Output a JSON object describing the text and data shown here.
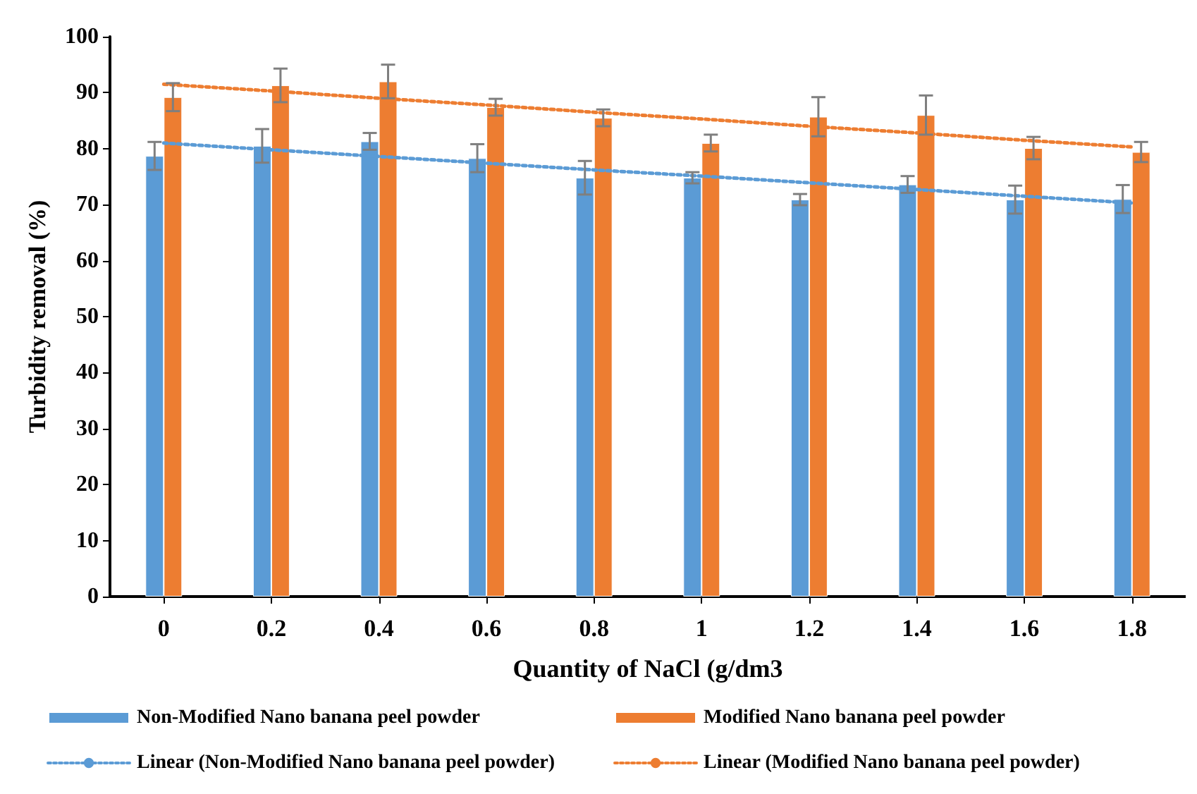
{
  "chart_data": {
    "type": "bar",
    "xlabel": "Quantity of NaCl (g/dm3",
    "ylabel": "Turbidity removal (%)",
    "categories": [
      "0",
      "0.2",
      "0.4",
      "0.6",
      "0.8",
      "1",
      "1.2",
      "1.4",
      "1.6",
      "1.8"
    ],
    "series": [
      {
        "name": "Non-Modified Nano banana peel powder",
        "color": "#5b9bd5",
        "values": [
          78.7,
          80.5,
          81.3,
          78.3,
          74.8,
          74.8,
          70.9,
          73.6,
          70.9,
          71.0
        ],
        "errors": [
          2.5,
          3,
          1.5,
          2.5,
          3,
          1,
          1,
          1.5,
          2.5,
          2.5
        ]
      },
      {
        "name": "Modified Nano banana peel powder",
        "color": "#ed7d31",
        "values": [
          89.2,
          91.3,
          92.0,
          87.4,
          85.5,
          81.0,
          85.7,
          86.0,
          80.1,
          79.4
        ],
        "errors": [
          2.5,
          3,
          3,
          1.5,
          1.5,
          1.5,
          3.5,
          3.5,
          2,
          1.8
        ]
      },
      {
        "name": "Linear (Non-Modified Nano banana peel powder)",
        "type": "line",
        "line_style": "dotted",
        "marker": "none",
        "color": "#5b9bd5",
        "values": [
          81.0,
          79.8,
          78.6,
          77.4,
          76.2,
          75.1,
          73.9,
          72.7,
          71.5,
          70.3
        ]
      },
      {
        "name": "Linear (Modified Nano banana peel powder)",
        "type": "line",
        "line_style": "dotted",
        "marker": "none",
        "color": "#ed7d31",
        "values": [
          91.5,
          90.3,
          89.0,
          87.8,
          86.5,
          85.3,
          84.0,
          82.8,
          81.5,
          80.3
        ]
      }
    ],
    "ylim": [
      0,
      100
    ],
    "yticks": [
      0,
      10,
      20,
      30,
      40,
      50,
      60,
      70,
      80,
      90,
      100
    ],
    "grid": false,
    "legend": "bottom"
  }
}
